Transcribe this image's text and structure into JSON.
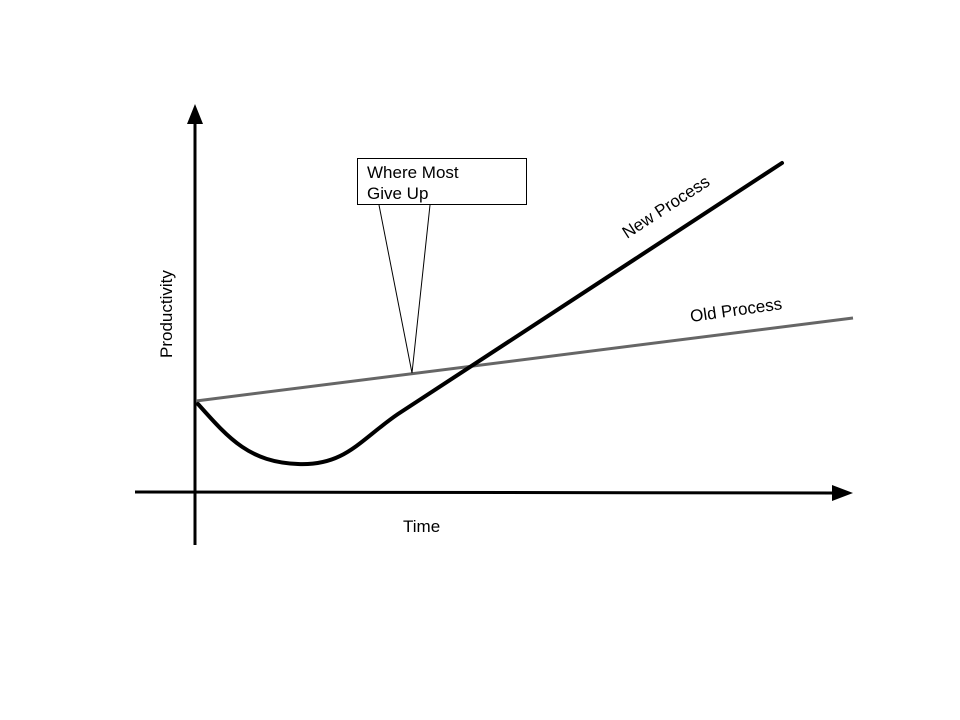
{
  "axes": {
    "x_label": "Time",
    "y_label": "Productivity"
  },
  "curves": {
    "new_process": {
      "label": "New Process",
      "color": "#000000"
    },
    "old_process": {
      "label": "Old Process",
      "color": "#666666"
    }
  },
  "callout": {
    "line1": "Where Most",
    "line2": "Give Up"
  }
}
